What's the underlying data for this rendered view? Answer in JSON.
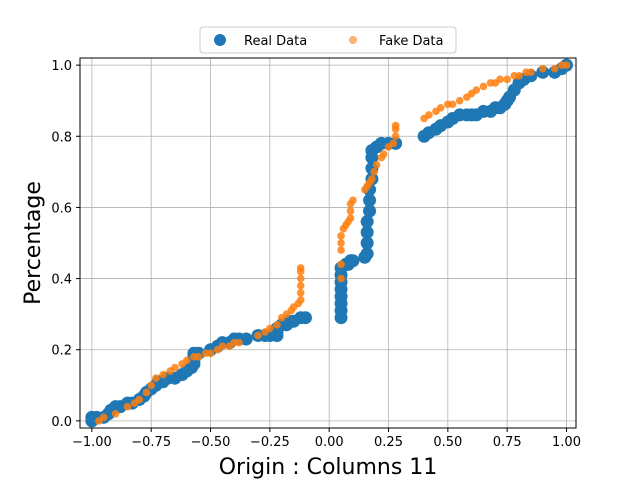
{
  "chart_data": {
    "type": "scatter",
    "title": "",
    "xlabel": "Origin : Columns 11",
    "ylabel": "Percentage",
    "xlim": [
      -1.05,
      1.04
    ],
    "ylim": [
      -0.02,
      1.02
    ],
    "xticks": [
      -1.0,
      -0.75,
      -0.5,
      -0.25,
      0.0,
      0.25,
      0.5,
      0.75,
      1.0
    ],
    "xtick_labels": [
      "−1.00",
      "−0.75",
      "−0.50",
      "−0.25",
      "0.00",
      "0.25",
      "0.50",
      "0.75",
      "1.00"
    ],
    "yticks": [
      0.0,
      0.2,
      0.4,
      0.6,
      0.8,
      1.0
    ],
    "ytick_labels": [
      "0.0",
      "0.2",
      "0.4",
      "0.6",
      "0.8",
      "1.0"
    ],
    "grid": true,
    "legend_position": "top-center",
    "series": [
      {
        "name": "Real Data",
        "color": "#1f77b4",
        "marker_size": "large",
        "points": [
          [
            -1.0,
            0.0
          ],
          [
            -1.0,
            0.01
          ],
          [
            -0.98,
            0.01
          ],
          [
            -0.95,
            0.01
          ],
          [
            -0.93,
            0.02
          ],
          [
            -0.92,
            0.03
          ],
          [
            -0.9,
            0.04
          ],
          [
            -0.88,
            0.04
          ],
          [
            -0.85,
            0.05
          ],
          [
            -0.83,
            0.05
          ],
          [
            -0.8,
            0.06
          ],
          [
            -0.78,
            0.07
          ],
          [
            -0.77,
            0.08
          ],
          [
            -0.75,
            0.09
          ],
          [
            -0.73,
            0.1
          ],
          [
            -0.72,
            0.11
          ],
          [
            -0.7,
            0.11
          ],
          [
            -0.68,
            0.12
          ],
          [
            -0.65,
            0.12
          ],
          [
            -0.62,
            0.13
          ],
          [
            -0.6,
            0.14
          ],
          [
            -0.58,
            0.15
          ],
          [
            -0.57,
            0.16
          ],
          [
            -0.57,
            0.17
          ],
          [
            -0.57,
            0.18
          ],
          [
            -0.57,
            0.19
          ],
          [
            -0.55,
            0.19
          ],
          [
            -0.5,
            0.2
          ],
          [
            -0.47,
            0.21
          ],
          [
            -0.45,
            0.22
          ],
          [
            -0.42,
            0.22
          ],
          [
            -0.4,
            0.23
          ],
          [
            -0.38,
            0.23
          ],
          [
            -0.35,
            0.23
          ],
          [
            -0.3,
            0.24
          ],
          [
            -0.27,
            0.24
          ],
          [
            -0.25,
            0.24
          ],
          [
            -0.22,
            0.24
          ],
          [
            -0.22,
            0.25
          ],
          [
            -0.22,
            0.26
          ],
          [
            -0.2,
            0.27
          ],
          [
            -0.18,
            0.27
          ],
          [
            -0.17,
            0.28
          ],
          [
            -0.15,
            0.28
          ],
          [
            -0.12,
            0.29
          ],
          [
            -0.1,
            0.29
          ],
          [
            0.05,
            0.29
          ],
          [
            0.05,
            0.31
          ],
          [
            0.05,
            0.33
          ],
          [
            0.05,
            0.35
          ],
          [
            0.05,
            0.37
          ],
          [
            0.05,
            0.39
          ],
          [
            0.05,
            0.41
          ],
          [
            0.05,
            0.43
          ],
          [
            0.07,
            0.44
          ],
          [
            0.08,
            0.44
          ],
          [
            0.09,
            0.45
          ],
          [
            0.1,
            0.45
          ],
          [
            0.15,
            0.46
          ],
          [
            0.16,
            0.47
          ],
          [
            0.16,
            0.5
          ],
          [
            0.16,
            0.53
          ],
          [
            0.16,
            0.56
          ],
          [
            0.17,
            0.59
          ],
          [
            0.17,
            0.62
          ],
          [
            0.17,
            0.65
          ],
          [
            0.18,
            0.68
          ],
          [
            0.18,
            0.71
          ],
          [
            0.18,
            0.74
          ],
          [
            0.18,
            0.76
          ],
          [
            0.2,
            0.77
          ],
          [
            0.22,
            0.78
          ],
          [
            0.25,
            0.78
          ],
          [
            0.28,
            0.78
          ],
          [
            0.4,
            0.8
          ],
          [
            0.42,
            0.81
          ],
          [
            0.45,
            0.82
          ],
          [
            0.47,
            0.83
          ],
          [
            0.5,
            0.84
          ],
          [
            0.52,
            0.85
          ],
          [
            0.55,
            0.86
          ],
          [
            0.58,
            0.86
          ],
          [
            0.6,
            0.86
          ],
          [
            0.62,
            0.86
          ],
          [
            0.65,
            0.87
          ],
          [
            0.68,
            0.87
          ],
          [
            0.7,
            0.88
          ],
          [
            0.72,
            0.88
          ],
          [
            0.74,
            0.89
          ],
          [
            0.75,
            0.9
          ],
          [
            0.76,
            0.91
          ],
          [
            0.78,
            0.93
          ],
          [
            0.8,
            0.95
          ],
          [
            0.82,
            0.96
          ],
          [
            0.85,
            0.97
          ],
          [
            0.9,
            0.98
          ],
          [
            0.95,
            0.98
          ],
          [
            0.98,
            0.99
          ],
          [
            1.0,
            1.0
          ]
        ]
      },
      {
        "name": "Fake Data",
        "color": "#ff7f0e",
        "marker_size": "small",
        "points": [
          [
            -0.97,
            0.0
          ],
          [
            -0.95,
            0.01
          ],
          [
            -0.9,
            0.02
          ],
          [
            -0.85,
            0.04
          ],
          [
            -0.82,
            0.05
          ],
          [
            -0.8,
            0.06
          ],
          [
            -0.77,
            0.08
          ],
          [
            -0.75,
            0.1
          ],
          [
            -0.73,
            0.12
          ],
          [
            -0.7,
            0.13
          ],
          [
            -0.67,
            0.14
          ],
          [
            -0.65,
            0.15
          ],
          [
            -0.62,
            0.16
          ],
          [
            -0.6,
            0.17
          ],
          [
            -0.57,
            0.18
          ],
          [
            -0.55,
            0.18
          ],
          [
            -0.52,
            0.19
          ],
          [
            -0.5,
            0.19
          ],
          [
            -0.47,
            0.2
          ],
          [
            -0.45,
            0.21
          ],
          [
            -0.42,
            0.21
          ],
          [
            -0.4,
            0.22
          ],
          [
            -0.38,
            0.22
          ],
          [
            -0.3,
            0.24
          ],
          [
            -0.27,
            0.25
          ],
          [
            -0.25,
            0.26
          ],
          [
            -0.22,
            0.27
          ],
          [
            -0.2,
            0.29
          ],
          [
            -0.18,
            0.3
          ],
          [
            -0.16,
            0.31
          ],
          [
            -0.15,
            0.32
          ],
          [
            -0.13,
            0.33
          ],
          [
            -0.12,
            0.34
          ],
          [
            -0.12,
            0.36
          ],
          [
            -0.12,
            0.38
          ],
          [
            -0.12,
            0.4
          ],
          [
            -0.12,
            0.42
          ],
          [
            -0.12,
            0.43
          ],
          [
            0.05,
            0.4
          ],
          [
            0.05,
            0.44
          ],
          [
            0.05,
            0.48
          ],
          [
            0.05,
            0.5
          ],
          [
            0.05,
            0.52
          ],
          [
            0.06,
            0.54
          ],
          [
            0.07,
            0.55
          ],
          [
            0.08,
            0.56
          ],
          [
            0.09,
            0.57
          ],
          [
            0.09,
            0.59
          ],
          [
            0.09,
            0.61
          ],
          [
            0.1,
            0.62
          ],
          [
            0.15,
            0.65
          ],
          [
            0.16,
            0.66
          ],
          [
            0.17,
            0.67
          ],
          [
            0.18,
            0.68
          ],
          [
            0.19,
            0.7
          ],
          [
            0.2,
            0.72
          ],
          [
            0.22,
            0.74
          ],
          [
            0.23,
            0.75
          ],
          [
            0.25,
            0.77
          ],
          [
            0.27,
            0.78
          ],
          [
            0.28,
            0.8
          ],
          [
            0.28,
            0.82
          ],
          [
            0.28,
            0.83
          ],
          [
            0.4,
            0.85
          ],
          [
            0.42,
            0.86
          ],
          [
            0.45,
            0.87
          ],
          [
            0.47,
            0.88
          ],
          [
            0.5,
            0.89
          ],
          [
            0.52,
            0.89
          ],
          [
            0.55,
            0.9
          ],
          [
            0.58,
            0.91
          ],
          [
            0.6,
            0.92
          ],
          [
            0.62,
            0.93
          ],
          [
            0.65,
            0.94
          ],
          [
            0.68,
            0.95
          ],
          [
            0.7,
            0.95
          ],
          [
            0.72,
            0.96
          ],
          [
            0.75,
            0.96
          ],
          [
            0.78,
            0.97
          ],
          [
            0.8,
            0.97
          ],
          [
            0.83,
            0.98
          ],
          [
            0.85,
            0.98
          ],
          [
            0.9,
            0.99
          ],
          [
            0.95,
            0.99
          ],
          [
            0.98,
            1.0
          ],
          [
            1.0,
            1.0
          ]
        ]
      }
    ]
  }
}
